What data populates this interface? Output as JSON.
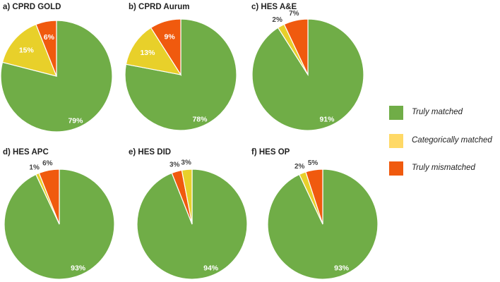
{
  "chart_data": [
    {
      "panel_label": "a) CPRD GOLD",
      "type": "pie",
      "categories": [
        "Truly matched",
        "Categorically matched",
        "Truly mismatched"
      ],
      "values": [
        79,
        15,
        6
      ],
      "data_labels": [
        "79%",
        "15%",
        "6%"
      ]
    },
    {
      "panel_label": "b) CPRD Aurum",
      "type": "pie",
      "categories": [
        "Truly matched",
        "Categorically matched",
        "Truly mismatched"
      ],
      "values": [
        78,
        13,
        9
      ],
      "data_labels": [
        "78%",
        "13%",
        "9%"
      ]
    },
    {
      "panel_label": "c) HES A&E",
      "type": "pie",
      "categories": [
        "Truly matched",
        "Categorically matched",
        "Truly mismatched"
      ],
      "values": [
        91,
        2,
        7
      ],
      "data_labels": [
        "91%",
        "2%",
        "7%"
      ]
    },
    {
      "panel_label": "d) HES APC",
      "type": "pie",
      "categories": [
        "Truly matched",
        "Categorically matched",
        "Truly mismatched"
      ],
      "values": [
        93,
        1,
        6
      ],
      "data_labels": [
        "93%",
        "1%",
        "6%"
      ]
    },
    {
      "panel_label": "e) HES DID",
      "type": "pie",
      "categories": [
        "Truly matched",
        "Truly mismatched",
        "Categorically matched"
      ],
      "values": [
        94,
        3,
        3
      ],
      "data_labels": [
        "94%",
        "3%",
        "3%"
      ]
    },
    {
      "panel_label": "f) HES OP",
      "type": "pie",
      "categories": [
        "Truly matched",
        "Categorically matched",
        "Truly mismatched"
      ],
      "values": [
        93,
        2,
        5
      ],
      "data_labels": [
        "93%",
        "2%",
        "5%"
      ]
    }
  ],
  "legend": [
    {
      "label": "Truly matched",
      "color": "#70AD47"
    },
    {
      "label": "Categorically matched",
      "color": "#FFD966"
    },
    {
      "label": "Truly mismatched",
      "color": "#F05A0E"
    }
  ],
  "colors": {
    "Truly matched": "#70AD47",
    "Categorically matched": "#E8D02A",
    "Truly mismatched": "#F05A0E"
  }
}
